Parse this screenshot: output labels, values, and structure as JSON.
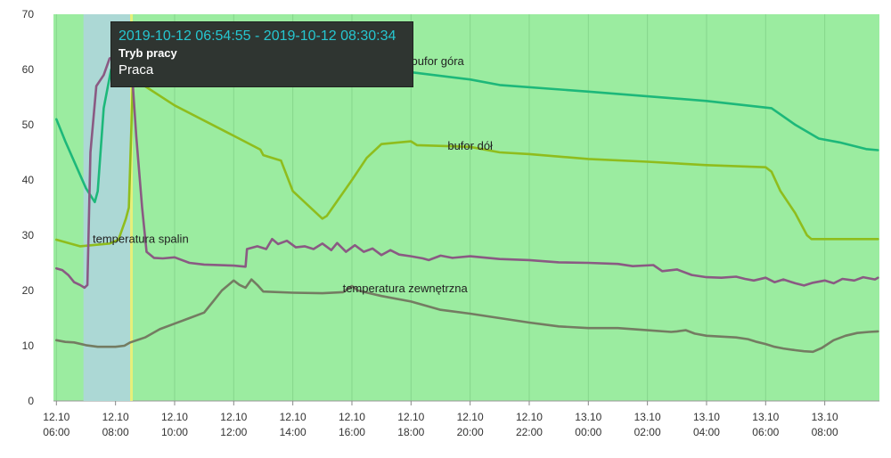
{
  "chart_data": {
    "type": "line",
    "title": "",
    "xlabel": "",
    "ylabel": "",
    "ylim": [
      0,
      70
    ],
    "yticks": [
      0,
      10,
      20,
      30,
      40,
      50,
      60,
      70
    ],
    "grid": true,
    "x_range_hours": [
      5.9,
      9.55
    ],
    "xticks": [
      {
        "day": "12.10",
        "time": "06:00",
        "h": 6
      },
      {
        "day": "12.10",
        "time": "08:00",
        "h": 8
      },
      {
        "day": "12.10",
        "time": "10:00",
        "h": 10
      },
      {
        "day": "12.10",
        "time": "12:00",
        "h": 12
      },
      {
        "day": "12.10",
        "time": "14:00",
        "h": 14
      },
      {
        "day": "12.10",
        "time": "16:00",
        "h": 16
      },
      {
        "day": "12.10",
        "time": "18:00",
        "h": 18
      },
      {
        "day": "12.10",
        "time": "20:00",
        "h": 20
      },
      {
        "day": "12.10",
        "time": "22:00",
        "h": 22
      },
      {
        "day": "13.10",
        "time": "00:00",
        "h": 24
      },
      {
        "day": "13.10",
        "time": "02:00",
        "h": 26
      },
      {
        "day": "13.10",
        "time": "04:00",
        "h": 28
      },
      {
        "day": "13.10",
        "time": "06:00",
        "h": 30
      },
      {
        "day": "13.10",
        "time": "08:00",
        "h": 32
      }
    ],
    "highlight": {
      "start_h": 6.915,
      "end_h": 8.509
    },
    "series": [
      {
        "name": "bufor góra",
        "color": "#1db87a",
        "label_at": [
          18.9,
          60.8
        ],
        "points": [
          [
            6.0,
            51
          ],
          [
            6.3,
            47
          ],
          [
            7.0,
            38.5
          ],
          [
            7.3,
            36
          ],
          [
            7.4,
            38
          ],
          [
            7.6,
            53
          ],
          [
            7.85,
            60
          ],
          [
            8.1,
            62
          ],
          [
            8.5,
            62.6
          ],
          [
            10,
            62.5
          ],
          [
            14,
            62
          ],
          [
            16,
            61.5
          ],
          [
            18,
            59.5
          ],
          [
            20,
            58.2
          ],
          [
            21,
            57.2
          ],
          [
            24,
            56
          ],
          [
            28,
            54.3
          ],
          [
            30.2,
            53
          ],
          [
            31,
            50
          ],
          [
            31.8,
            47.5
          ],
          [
            32.5,
            46.8
          ],
          [
            33.4,
            45.6
          ],
          [
            33.8,
            45.4
          ]
        ]
      },
      {
        "name": "bufor dół",
        "color": "#8fbd1d",
        "label_at": [
          20.0,
          45.5
        ],
        "points": [
          [
            6.0,
            29.2
          ],
          [
            6.8,
            28
          ],
          [
            7.8,
            28.5
          ],
          [
            8.1,
            29.2
          ],
          [
            8.35,
            33
          ],
          [
            8.45,
            35
          ],
          [
            8.58,
            57
          ],
          [
            8.7,
            58
          ],
          [
            10,
            53.5
          ],
          [
            12,
            48
          ],
          [
            12.9,
            45.5
          ],
          [
            13,
            44.5
          ],
          [
            13.6,
            43.5
          ],
          [
            14,
            38
          ],
          [
            15,
            33
          ],
          [
            15.15,
            33.5
          ],
          [
            16,
            40
          ],
          [
            16.5,
            44
          ],
          [
            17,
            46.5
          ],
          [
            18,
            47
          ],
          [
            18.2,
            46.3
          ],
          [
            20,
            46
          ],
          [
            21,
            45
          ],
          [
            22,
            44.7
          ],
          [
            24,
            43.8
          ],
          [
            26,
            43.3
          ],
          [
            28,
            42.7
          ],
          [
            30,
            42.3
          ],
          [
            30.2,
            41.5
          ],
          [
            30.5,
            38
          ],
          [
            31,
            34
          ],
          [
            31.4,
            30
          ],
          [
            31.55,
            29.3
          ],
          [
            33.8,
            29.3
          ]
        ]
      },
      {
        "name": "temperatura spalin",
        "color": "#8a5a83",
        "label_at": [
          8.85,
          28.6
        ],
        "points": [
          [
            6.0,
            24
          ],
          [
            6.2,
            23.7
          ],
          [
            6.4,
            22.8
          ],
          [
            6.6,
            21.5
          ],
          [
            6.8,
            21
          ],
          [
            6.95,
            20.5
          ],
          [
            7.05,
            21
          ],
          [
            7.15,
            45
          ],
          [
            7.35,
            57
          ],
          [
            7.6,
            59
          ],
          [
            7.8,
            62
          ],
          [
            7.9,
            62.2
          ],
          [
            8.5,
            62.5
          ],
          [
            8.55,
            60
          ],
          [
            8.7,
            48
          ],
          [
            8.9,
            35
          ],
          [
            9.05,
            27
          ],
          [
            9.3,
            25.9
          ],
          [
            9.6,
            25.8
          ],
          [
            10,
            26
          ],
          [
            10.5,
            25
          ],
          [
            11,
            24.7
          ],
          [
            12,
            24.5
          ],
          [
            12.4,
            24.3
          ],
          [
            12.45,
            27.5
          ],
          [
            12.8,
            28
          ],
          [
            13.1,
            27.5
          ],
          [
            13.3,
            29.3
          ],
          [
            13.5,
            28.4
          ],
          [
            13.8,
            29
          ],
          [
            14.1,
            27.8
          ],
          [
            14.4,
            28
          ],
          [
            14.7,
            27.5
          ],
          [
            15,
            28.5
          ],
          [
            15.3,
            27.3
          ],
          [
            15.5,
            28.6
          ],
          [
            15.8,
            27
          ],
          [
            16.1,
            28.2
          ],
          [
            16.4,
            27
          ],
          [
            16.7,
            27.6
          ],
          [
            17,
            26.4
          ],
          [
            17.3,
            27.3
          ],
          [
            17.6,
            26.5
          ],
          [
            18,
            26.2
          ],
          [
            18.4,
            25.8
          ],
          [
            18.6,
            25.5
          ],
          [
            19,
            26.3
          ],
          [
            19.4,
            25.9
          ],
          [
            20,
            26.2
          ],
          [
            21,
            25.7
          ],
          [
            22,
            25.5
          ],
          [
            23,
            25.1
          ],
          [
            24,
            25
          ],
          [
            25,
            24.8
          ],
          [
            25.5,
            24.4
          ],
          [
            26.2,
            24.6
          ],
          [
            26.5,
            23.5
          ],
          [
            27,
            23.8
          ],
          [
            27.5,
            22.8
          ],
          [
            28,
            22.4
          ],
          [
            28.5,
            22.3
          ],
          [
            29,
            22.5
          ],
          [
            29.3,
            22.1
          ],
          [
            29.6,
            21.8
          ],
          [
            30,
            22.3
          ],
          [
            30.3,
            21.5
          ],
          [
            30.6,
            22
          ],
          [
            31,
            21.3
          ],
          [
            31.3,
            20.9
          ],
          [
            31.6,
            21.4
          ],
          [
            32,
            21.8
          ],
          [
            32.3,
            21.3
          ],
          [
            32.6,
            22.1
          ],
          [
            33,
            21.8
          ],
          [
            33.3,
            22.4
          ],
          [
            33.7,
            22
          ],
          [
            33.8,
            22.3
          ]
        ]
      },
      {
        "name": "temperatura zewnętrzna",
        "color": "#747c62",
        "label_at": [
          17.8,
          19.7
        ],
        "points": [
          [
            6.0,
            11
          ],
          [
            6.3,
            10.7
          ],
          [
            6.6,
            10.6
          ],
          [
            7,
            10.1
          ],
          [
            7.4,
            9.8
          ],
          [
            8,
            9.8
          ],
          [
            8.3,
            10
          ],
          [
            8.5,
            10.6
          ],
          [
            9,
            11.5
          ],
          [
            9.5,
            13
          ],
          [
            10,
            14
          ],
          [
            10.5,
            15
          ],
          [
            11,
            16
          ],
          [
            11.3,
            18
          ],
          [
            11.6,
            20
          ],
          [
            12,
            21.8
          ],
          [
            12.2,
            21
          ],
          [
            12.4,
            20.5
          ],
          [
            12.6,
            22
          ],
          [
            12.8,
            21
          ],
          [
            13,
            19.8
          ],
          [
            14,
            19.6
          ],
          [
            15,
            19.5
          ],
          [
            15.7,
            19.7
          ],
          [
            16,
            20.8
          ],
          [
            16.2,
            20
          ],
          [
            16.6,
            19.5
          ],
          [
            17,
            19
          ],
          [
            18,
            18
          ],
          [
            19,
            16.5
          ],
          [
            20,
            15.8
          ],
          [
            21,
            15
          ],
          [
            22,
            14.2
          ],
          [
            23,
            13.5
          ],
          [
            24,
            13.2
          ],
          [
            25,
            13.2
          ],
          [
            26,
            12.8
          ],
          [
            26.8,
            12.5
          ],
          [
            27,
            12.6
          ],
          [
            27.3,
            12.8
          ],
          [
            27.6,
            12.2
          ],
          [
            28,
            11.8
          ],
          [
            29,
            11.5
          ],
          [
            29.4,
            11.2
          ],
          [
            29.7,
            10.7
          ],
          [
            30,
            10.3
          ],
          [
            30.3,
            9.8
          ],
          [
            30.6,
            9.5
          ],
          [
            31,
            9.2
          ],
          [
            31.3,
            9
          ],
          [
            31.6,
            8.9
          ],
          [
            31.9,
            9.6
          ],
          [
            32.3,
            11
          ],
          [
            32.7,
            11.8
          ],
          [
            33.1,
            12.3
          ],
          [
            33.5,
            12.5
          ],
          [
            33.8,
            12.6
          ]
        ]
      }
    ]
  },
  "tooltip": {
    "range": "2019-10-12 06:54:55 - 2019-10-12 08:30:34",
    "name": "Tryb pracy",
    "value": "Praca"
  },
  "colors": {
    "plot_bg": "#9beca0",
    "grid": "#86d68c",
    "highlight": "#acd8d5",
    "highlight_edge": "#e7f07a"
  }
}
